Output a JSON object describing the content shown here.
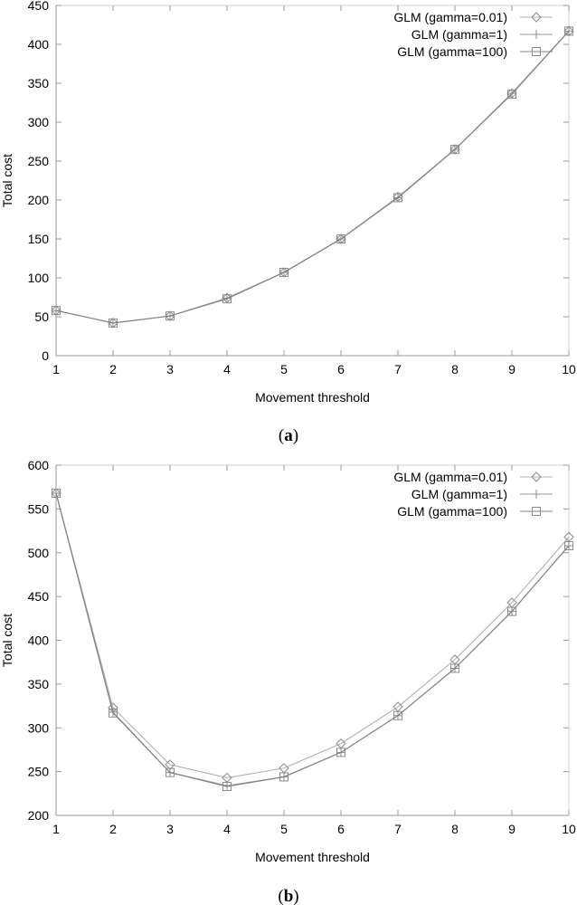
{
  "chart_data": [
    {
      "type": "line",
      "caption": "a",
      "xlabel": "Movement threshold",
      "ylabel": "Total cost",
      "x": [
        1,
        2,
        3,
        4,
        5,
        6,
        7,
        8,
        9,
        10
      ],
      "xlim": [
        1,
        10
      ],
      "ylim": [
        0,
        450
      ],
      "xticks": [
        1,
        2,
        3,
        4,
        5,
        6,
        7,
        8,
        9,
        10
      ],
      "yticks": [
        0,
        50,
        100,
        150,
        200,
        250,
        300,
        350,
        400,
        450
      ],
      "grid": false,
      "legend_position": "top-right",
      "series": [
        {
          "name": "GLM (gamma=0.01)",
          "marker": "diamond",
          "values": [
            58,
            42,
            51,
            74,
            107,
            150,
            204,
            265,
            337,
            417
          ]
        },
        {
          "name": "GLM (gamma=1)",
          "marker": "plus",
          "values": [
            58,
            42,
            51,
            74,
            107,
            150,
            203,
            265,
            337,
            417
          ]
        },
        {
          "name": "GLM (gamma=100)",
          "marker": "square",
          "values": [
            58,
            42,
            51,
            73,
            107,
            150,
            203,
            265,
            336,
            417
          ]
        }
      ]
    },
    {
      "type": "line",
      "caption": "b",
      "xlabel": "Movement threshold",
      "ylabel": "Total cost",
      "x": [
        1,
        2,
        3,
        4,
        5,
        6,
        7,
        8,
        9,
        10
      ],
      "xlim": [
        1,
        10
      ],
      "ylim": [
        200,
        600
      ],
      "xticks": [
        1,
        2,
        3,
        4,
        5,
        6,
        7,
        8,
        9,
        10
      ],
      "yticks": [
        200,
        250,
        300,
        350,
        400,
        450,
        500,
        550,
        600
      ],
      "grid": false,
      "legend_position": "top-right",
      "series": [
        {
          "name": "GLM (gamma=0.01)",
          "marker": "diamond",
          "values": [
            568,
            323,
            258,
            243,
            254,
            282,
            324,
            378,
            443,
            518
          ]
        },
        {
          "name": "GLM (gamma=1)",
          "marker": "plus",
          "values": [
            568,
            318,
            249,
            234,
            244,
            272,
            314,
            368,
            433,
            508
          ]
        },
        {
          "name": "GLM (gamma=100)",
          "marker": "square",
          "values": [
            568,
            317,
            249,
            233,
            244,
            272,
            314,
            368,
            433,
            508
          ]
        }
      ]
    }
  ]
}
